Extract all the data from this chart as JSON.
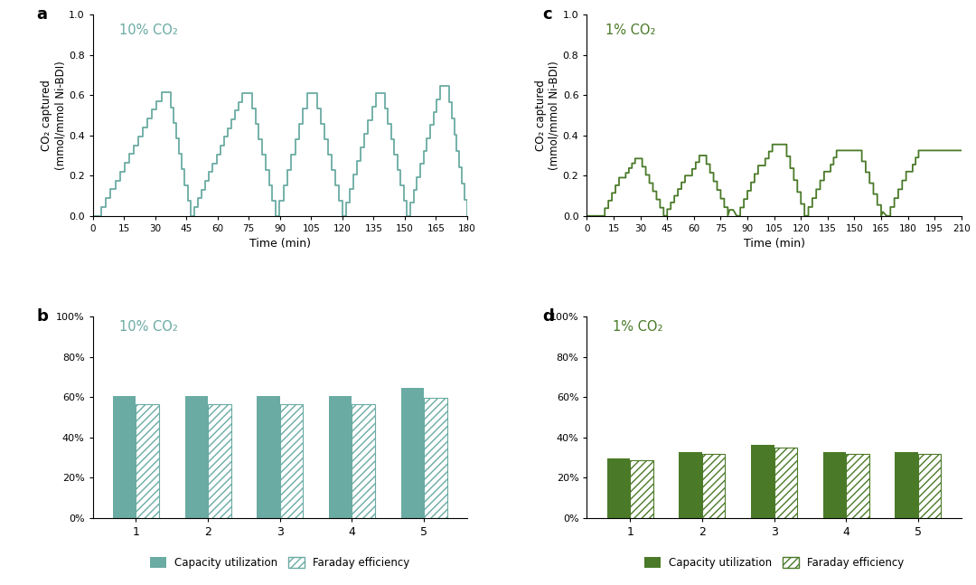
{
  "panel_a": {
    "label": "a",
    "title": "10% CO₂",
    "title_color": "#6aaba3",
    "color": "#6aaba3",
    "xlabel": "Time (min)",
    "ylabel": "CO₂ captured\n(mmol/mmol Ni-BDI)",
    "xlim": [
      0,
      180
    ],
    "ylim": [
      0,
      1.0
    ],
    "xticks": [
      0,
      15,
      30,
      45,
      60,
      75,
      90,
      105,
      120,
      135,
      150,
      165,
      180
    ],
    "yticks": [
      0,
      0.2,
      0.4,
      0.6,
      0.8,
      1.0
    ]
  },
  "panel_b": {
    "label": "b",
    "title": "10% CO₂",
    "title_color": "#6aaba3",
    "color_solid": "#6aaba3",
    "color_hatch": "#6aaba3",
    "capacity": [
      0.605,
      0.605,
      0.605,
      0.605,
      0.645
    ],
    "faraday": [
      0.565,
      0.565,
      0.565,
      0.565,
      0.595
    ],
    "xticks": [
      1,
      2,
      3,
      4,
      5
    ],
    "ylim": [
      0.0,
      1.0
    ],
    "yticks": [
      0.0,
      0.2,
      0.4,
      0.6,
      0.8,
      1.0
    ],
    "ytick_labels": [
      "0%",
      "20%",
      "40%",
      "60%",
      "80%",
      "100%"
    ]
  },
  "panel_c": {
    "label": "c",
    "title": "1% CO₂",
    "title_color": "#4a7a28",
    "color": "#4a7a28",
    "xlabel": "Time (min)",
    "ylabel": "CO₂ captured\n(mmol/mmol Ni-BDI)",
    "xlim": [
      0,
      210
    ],
    "ylim": [
      0,
      1.0
    ],
    "xticks": [
      0,
      15,
      30,
      45,
      60,
      75,
      90,
      105,
      120,
      135,
      150,
      165,
      180,
      195,
      210
    ],
    "yticks": [
      0,
      0.2,
      0.4,
      0.6,
      0.8,
      1.0
    ]
  },
  "panel_d": {
    "label": "d",
    "title": "1% CO₂",
    "title_color": "#4a7a28",
    "color_solid": "#4a7a28",
    "color_hatch": "#4a7a28",
    "capacity": [
      0.295,
      0.325,
      0.36,
      0.325,
      0.325
    ],
    "faraday": [
      0.285,
      0.315,
      0.35,
      0.315,
      0.315
    ],
    "xticks": [
      1,
      2,
      3,
      4,
      5
    ],
    "ylim": [
      0.0,
      1.0
    ],
    "yticks": [
      0.0,
      0.2,
      0.4,
      0.6,
      0.8,
      1.0
    ],
    "ytick_labels": [
      "0%",
      "20%",
      "40%",
      "60%",
      "80%",
      "100%"
    ]
  }
}
